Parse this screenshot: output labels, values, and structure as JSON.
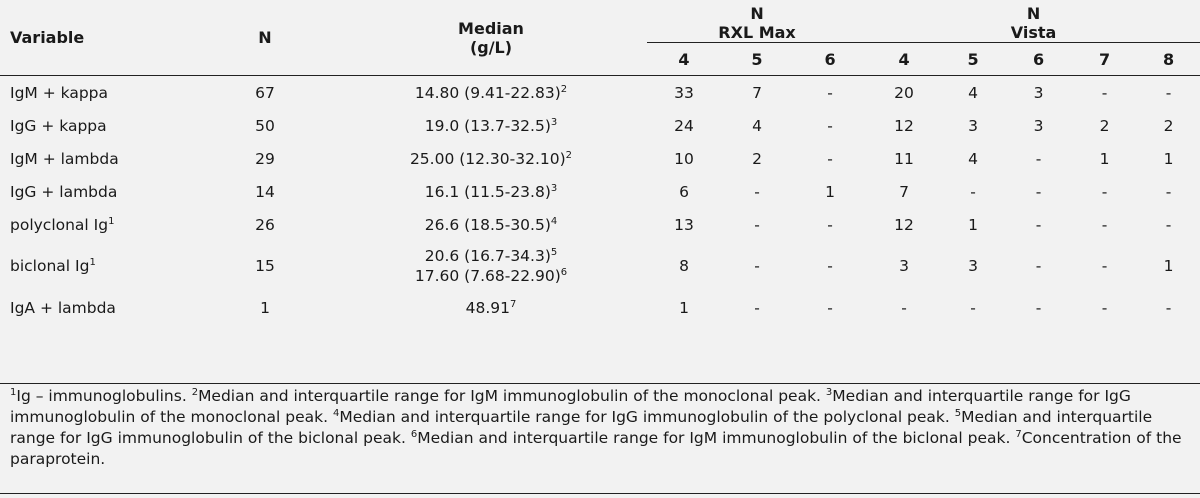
{
  "header": {
    "variable": "Variable",
    "n": "N",
    "median_line1": "Median",
    "median_line2": "(g/L)",
    "group1_line1": "N",
    "group1_line2": "RXL Max",
    "group2_line1": "N",
    "group2_line2": "Vista",
    "sub": [
      "4",
      "5",
      "6",
      "4",
      "5",
      "6",
      "7",
      "8"
    ]
  },
  "rows": [
    {
      "variable": "IgM + kappa",
      "sup": "",
      "n": "67",
      "median": "14.80 (9.41-22.83)",
      "median_sup": "2",
      "median2": "",
      "median2_sup": "",
      "vals": [
        "33",
        "7",
        "-",
        "20",
        "4",
        "3",
        "-",
        "-"
      ]
    },
    {
      "variable": "IgG + kappa",
      "sup": "",
      "n": "50",
      "median": "19.0 (13.7-32.5)",
      "median_sup": "3",
      "median2": "",
      "median2_sup": "",
      "vals": [
        "24",
        "4",
        "-",
        "12",
        "3",
        "3",
        "2",
        "2"
      ]
    },
    {
      "variable": "IgM + lambda",
      "sup": "",
      "n": "29",
      "median": "25.00 (12.30-32.10)",
      "median_sup": "2",
      "median2": "",
      "median2_sup": "",
      "vals": [
        "10",
        "2",
        "-",
        "11",
        "4",
        "-",
        "1",
        "1"
      ]
    },
    {
      "variable": "IgG + lambda",
      "sup": "",
      "n": "14",
      "median": "16.1 (11.5-23.8)",
      "median_sup": "3",
      "median2": "",
      "median2_sup": "",
      "vals": [
        "6",
        "-",
        "1",
        "7",
        "-",
        "-",
        "-",
        "-"
      ]
    },
    {
      "variable": "polyclonal Ig",
      "sup": "1",
      "n": "26",
      "median": "26.6 (18.5-30.5)",
      "median_sup": "4",
      "median2": "",
      "median2_sup": "",
      "vals": [
        "13",
        "-",
        "-",
        "12",
        "1",
        "-",
        "-",
        "-"
      ]
    },
    {
      "variable": "biclonal Ig",
      "sup": "1",
      "n": "15",
      "median": "20.6 (16.7-34.3)",
      "median_sup": "5",
      "median2": "17.60 (7.68-22.90)",
      "median2_sup": "6",
      "vals": [
        "8",
        "-",
        "-",
        "3",
        "3",
        "-",
        "-",
        "1"
      ]
    },
    {
      "variable": "IgA + lambda",
      "sup": "",
      "n": "1",
      "median": "48.91",
      "median_sup": "7",
      "median2": "",
      "median2_sup": "",
      "vals": [
        "1",
        "-",
        "-",
        "-",
        "-",
        "-",
        "-",
        "-"
      ]
    }
  ],
  "footnotes": [
    {
      "num": "1",
      "text": "Ig – immunoglobulins. "
    },
    {
      "num": "2",
      "text": "Median and interquartile range for IgM immunoglobulin of the monoclonal peak. "
    },
    {
      "num": "3",
      "text": "Median and interquartile range for IgG immunoglobulin of the monoclonal peak. "
    },
    {
      "num": "4",
      "text": "Median and interquartile range for IgG immunoglobulin of the polyclonal peak. "
    },
    {
      "num": "5",
      "text": "Median and interquartile range for IgG immunoglobulin of the biclonal peak. "
    },
    {
      "num": "6",
      "text": "Median and interquartile range for IgM immunoglobulin of the biclonal peak. "
    },
    {
      "num": "7",
      "text": "Concentration of the paraprotein."
    }
  ]
}
